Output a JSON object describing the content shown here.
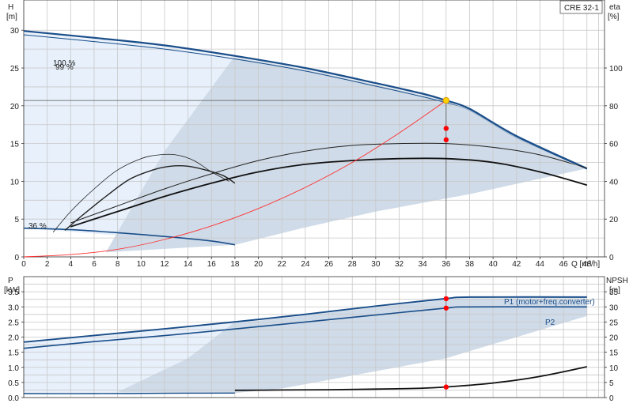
{
  "model_label": "CRE 32-1",
  "top": {
    "y_left_label": "H",
    "y_left_unit": "[m]",
    "y_right_label": "eta",
    "y_right_unit": "[%]",
    "x_label": "Q [m³/h]",
    "curve_labels": [
      "100 %",
      "99 %",
      "36 %"
    ],
    "colors": {
      "band_light": "#e7f0fb",
      "band_mid": "#cfdbe8",
      "curve_blue": "#1a4e8a",
      "system_curve": "#ff3030",
      "marker": "#ff0000",
      "duty_point": "#ffd200"
    }
  },
  "bottom": {
    "y_left_label": "P",
    "y_left_unit": "[kW]",
    "y_right_label": "NPSH",
    "y_right_unit": "[m]",
    "curve_labels": [
      "P1 (motor+freq.converter)",
      "P2"
    ]
  },
  "chart_data": [
    {
      "type": "line",
      "title": "",
      "xlabel": "Q [m³/h]",
      "ylabel": "H [m]",
      "y2label": "eta [%]",
      "xlim": [
        0,
        49.5
      ],
      "ylim": [
        0,
        34
      ],
      "y2lim": [
        0,
        136
      ],
      "x_ticks": [
        0,
        2,
        4,
        6,
        8,
        10,
        12,
        14,
        16,
        18,
        20,
        22,
        24,
        26,
        28,
        30,
        32,
        34,
        36,
        38,
        40,
        42,
        44,
        46,
        48
      ],
      "y_ticks": [
        0,
        5,
        10,
        15,
        20,
        25,
        30
      ],
      "y2_ticks": [
        0,
        20,
        40,
        60,
        80,
        100
      ],
      "grid": true,
      "duty_point": {
        "x": 36,
        "y": 20.7
      },
      "series": [
        {
          "name": "100 %",
          "axis": "H",
          "x": [
            0,
            6,
            12,
            18,
            24,
            30,
            34,
            36,
            38,
            42,
            48
          ],
          "y": [
            29.9,
            29.0,
            28.0,
            26.6,
            25.0,
            23.0,
            21.6,
            20.7,
            19.6,
            16.0,
            11.7
          ]
        },
        {
          "name": "99 %",
          "axis": "H",
          "x": [
            0,
            6,
            12,
            18,
            24,
            30,
            34,
            36,
            38,
            42,
            48
          ],
          "y": [
            29.4,
            28.5,
            27.5,
            26.2,
            24.6,
            22.6,
            21.2,
            20.4,
            19.4,
            15.8,
            11.6
          ]
        },
        {
          "name": "36 %",
          "axis": "H",
          "x": [
            0,
            4,
            8,
            12,
            16,
            18
          ],
          "y": [
            3.8,
            3.6,
            3.2,
            2.7,
            2.1,
            1.6
          ]
        },
        {
          "name": "",
          "axis": "eta",
          "x": [
            2.5,
            4,
            6,
            8,
            10,
            11.5,
            13,
            14.5,
            16,
            17.5
          ],
          "y": [
            13,
            24,
            36,
            46,
            52,
            54,
            54,
            51,
            45,
            40
          ]
        },
        {
          "name": "",
          "axis": "eta",
          "x": [
            3.5,
            5,
            7,
            9,
            11,
            12.5,
            14,
            15.5,
            17,
            18
          ],
          "y": [
            14,
            22,
            32,
            41,
            46,
            48,
            48,
            46,
            43,
            39
          ]
        },
        {
          "name": "",
          "axis": "eta",
          "x": [
            4,
            8,
            12,
            16,
            20,
            24,
            28,
            32,
            36,
            40,
            44,
            48
          ],
          "y": [
            18,
            27,
            36,
            44,
            51,
            56,
            59,
            60,
            60,
            58,
            54,
            47
          ]
        },
        {
          "name": "",
          "axis": "eta",
          "x": [
            4,
            8,
            12,
            16,
            20,
            24,
            28,
            32,
            36,
            40,
            44,
            48
          ],
          "y": [
            16,
            24,
            32,
            39,
            45,
            49,
            51,
            52,
            52,
            50,
            45,
            38
          ]
        },
        {
          "name": "",
          "axis": "H",
          "x": [
            0,
            4,
            8,
            12,
            16,
            20,
            24,
            28,
            32,
            36
          ],
          "y": [
            0,
            0.3,
            1.0,
            2.3,
            4.1,
            6.4,
            9.2,
            12.5,
            16.4,
            20.7
          ]
        }
      ],
      "markers": [
        {
          "x": 36,
          "y": 20.7,
          "axis": "H"
        },
        {
          "x": 36,
          "y": 68,
          "axis": "eta"
        },
        {
          "x": 36,
          "y": 62,
          "axis": "eta"
        }
      ]
    },
    {
      "type": "line",
      "title": "",
      "xlabel": "",
      "ylabel": "P [kW]",
      "y2label": "NPSH [m]",
      "xlim": [
        0,
        49.5
      ],
      "ylim": [
        0,
        4.0
      ],
      "y2lim": [
        0,
        40
      ],
      "y_ticks": [
        0.0,
        0.5,
        1.0,
        1.5,
        2.0,
        2.5,
        3.0,
        3.5
      ],
      "y2_ticks": [
        0,
        5,
        10,
        15,
        20,
        25,
        30,
        35
      ],
      "grid": true,
      "series": [
        {
          "name": "P1 (motor+freq.converter)",
          "axis": "P",
          "x": [
            0,
            6,
            12,
            18,
            24,
            30,
            36,
            38,
            48
          ],
          "y": [
            1.83,
            2.05,
            2.27,
            2.5,
            2.75,
            3.02,
            3.27,
            3.32,
            3.32
          ]
        },
        {
          "name": "P2",
          "axis": "P",
          "x": [
            0,
            6,
            12,
            18,
            24,
            30,
            36,
            38,
            48
          ],
          "y": [
            1.63,
            1.85,
            2.05,
            2.27,
            2.5,
            2.73,
            2.96,
            3.0,
            3.0
          ]
        },
        {
          "name": "",
          "axis": "P",
          "x": [
            0,
            6,
            12,
            18
          ],
          "y": [
            0.13,
            0.13,
            0.14,
            0.15
          ]
        },
        {
          "name": "",
          "axis": "NPSH",
          "x": [
            18,
            22,
            26,
            30,
            34,
            36,
            40,
            44,
            48
          ],
          "y": [
            2.4,
            2.5,
            2.6,
            2.8,
            3.1,
            3.5,
            4.8,
            7.0,
            10.2
          ]
        }
      ],
      "markers": [
        {
          "x": 36,
          "y": 3.27,
          "axis": "P"
        },
        {
          "x": 36,
          "y": 2.96,
          "axis": "P"
        },
        {
          "x": 36,
          "y": 3.5,
          "axis": "NPSH"
        }
      ]
    }
  ]
}
